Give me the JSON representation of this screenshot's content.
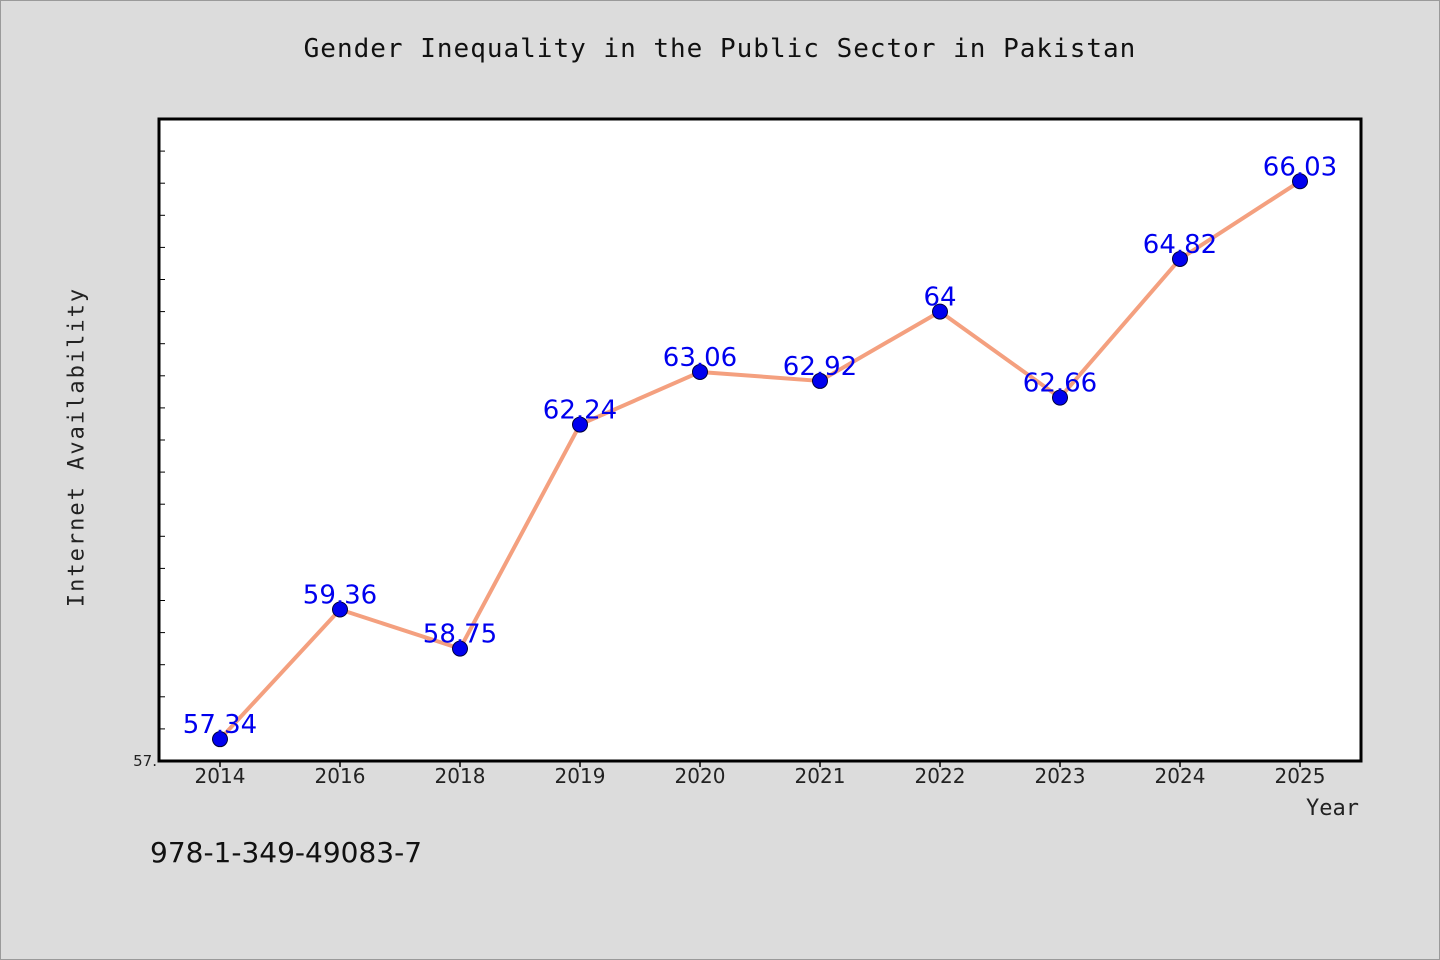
{
  "chart_data": {
    "type": "line",
    "title": "Gender Inequality in the Public Sector in Pakistan",
    "xlabel": "Year",
    "ylabel": "Internet Availability",
    "categories": [
      "2014",
      "2016",
      "2018",
      "2019",
      "2020",
      "2021",
      "2022",
      "2023",
      "2024",
      "2025"
    ],
    "series": [
      {
        "values": [
          57.34,
          59.36,
          58.75,
          62.24,
          63.06,
          62.92,
          64,
          62.66,
          64.82,
          66.03
        ],
        "color": "#f4a07f",
        "marker_color": "#0000ee"
      }
    ],
    "data_labels": [
      "57.34",
      "59.36",
      "58.75",
      "62.24",
      "63.06",
      "62.92",
      "64",
      "62.66",
      "64.82",
      "66.03"
    ],
    "y_tick_label": "57.",
    "ylim": [
      57.0,
      67.0
    ],
    "grid": false,
    "legend": "none",
    "label_color": "#0000ee"
  },
  "footer": {
    "code": "978-1-349-49083-7"
  }
}
